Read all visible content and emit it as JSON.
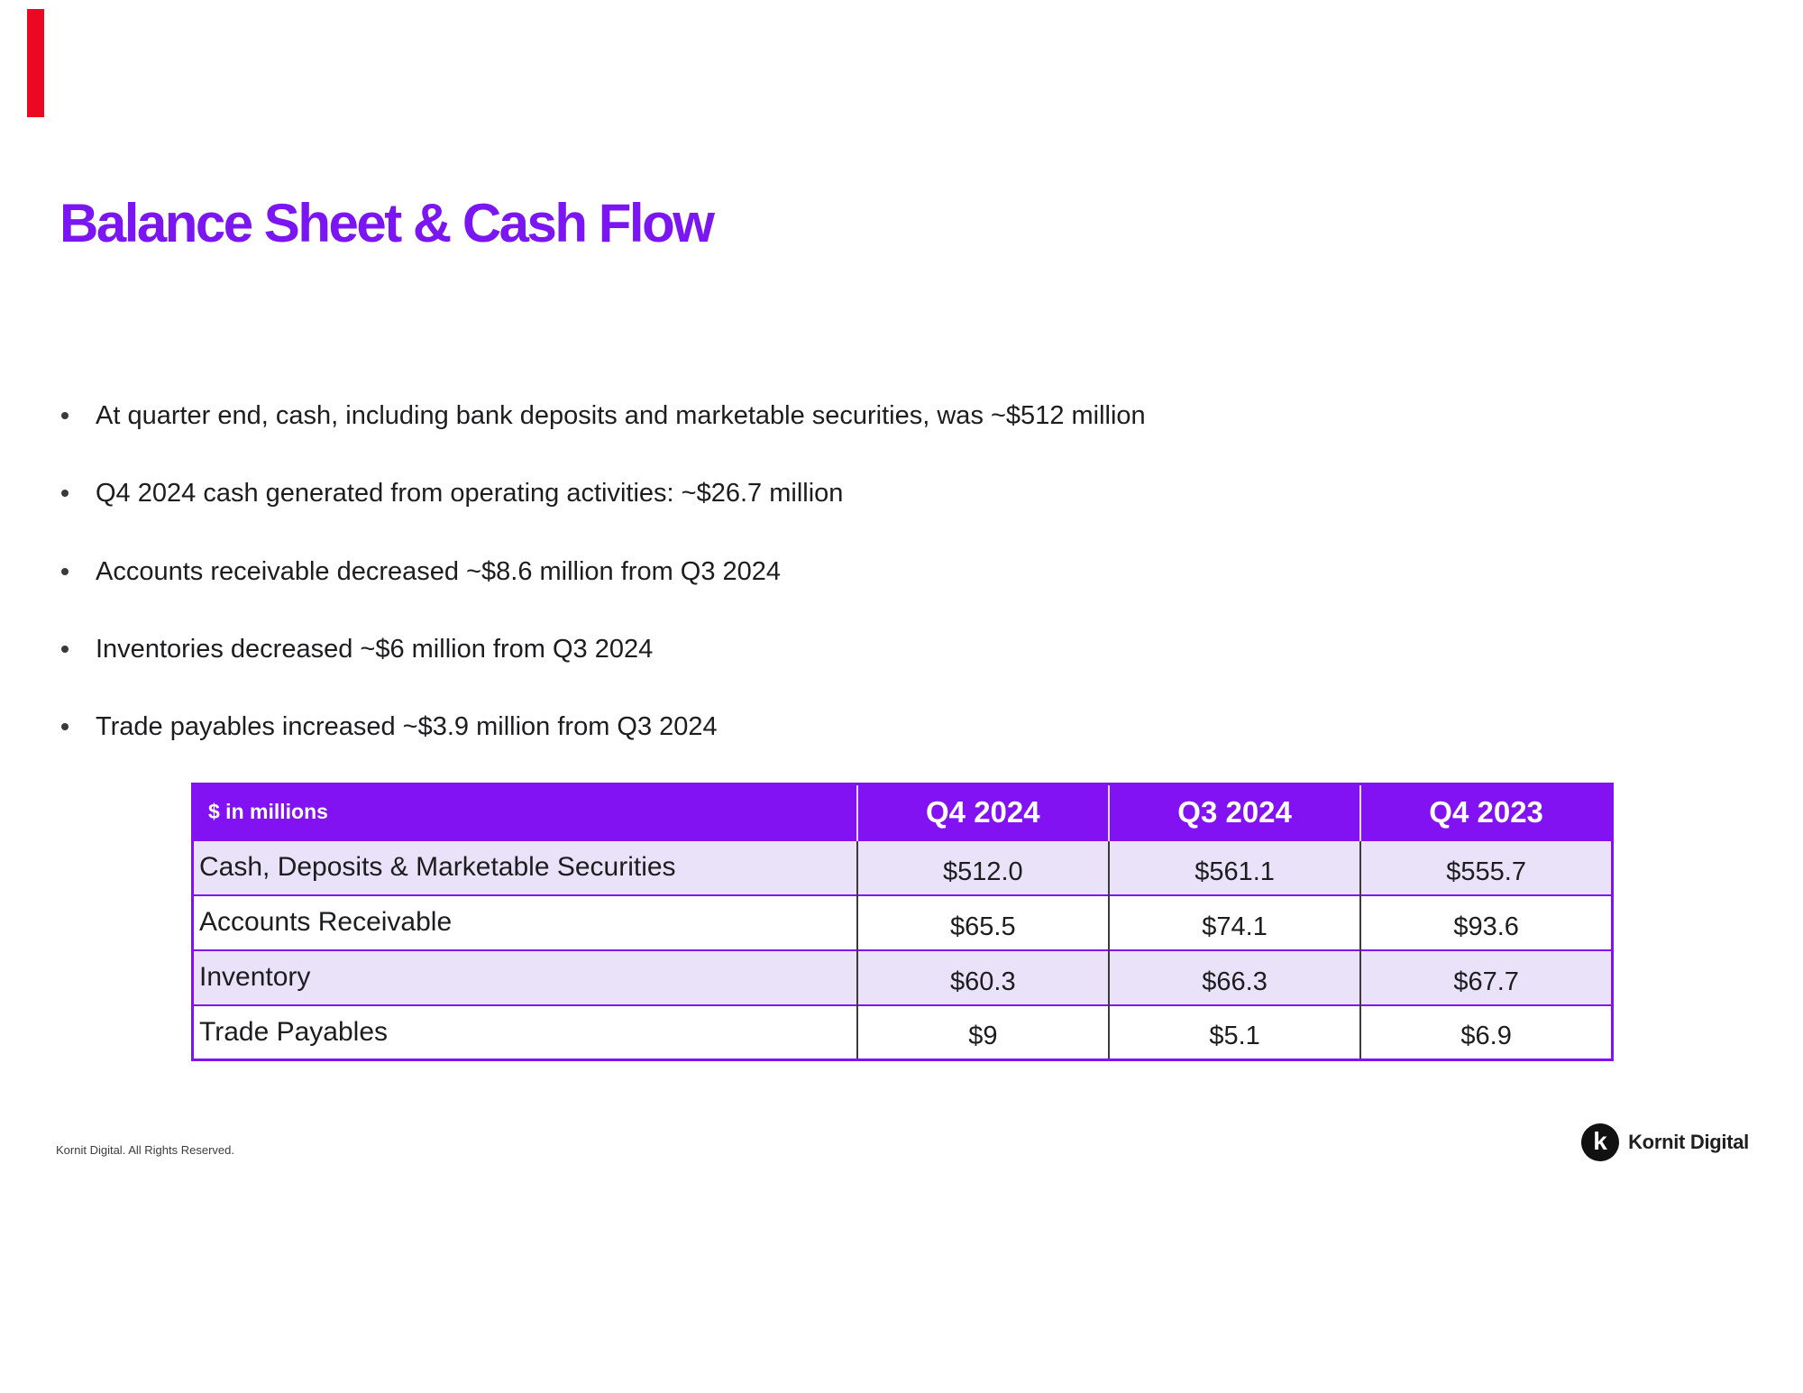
{
  "slide": {
    "title": "Balance Sheet & Cash Flow",
    "bullets": [
      "At quarter end, cash, including bank deposits and marketable securities, was ~$512 million",
      "Q4 2024 cash generated from operating activities: ~$26.7 million",
      "Accounts receivable decreased ~$8.6 million from Q3 2024",
      "Inventories decreased ~$6 million from Q3 2024",
      "Trade payables increased ~$3.9 million from Q3 2024"
    ]
  },
  "table": {
    "header": {
      "label": "$ in millions",
      "columns": [
        "Q4 2024",
        "Q3 2024",
        "Q4 2023"
      ]
    },
    "rows": [
      {
        "label": "Cash, Deposits & Marketable Securities",
        "values": [
          "$512.0",
          "$561.1",
          "$555.7"
        ]
      },
      {
        "label": "Accounts Receivable",
        "values": [
          "$65.5",
          "$74.1",
          "$93.6"
        ]
      },
      {
        "label": "Inventory",
        "values": [
          "$60.3",
          "$66.3",
          "$67.7"
        ]
      },
      {
        "label": "Trade Payables",
        "values": [
          "$9",
          "$5.1",
          "$6.9"
        ]
      }
    ]
  },
  "footer": {
    "copyright": "Kornit Digital. All Rights Reserved.",
    "logo_text": "Kornit Digital",
    "logo_glyph": "k"
  },
  "colors": {
    "accent_purple": "#8312F3",
    "title_purple": "#7B16F2",
    "row_lavender": "#E9E2F9",
    "accent_red": "#EB0822"
  }
}
